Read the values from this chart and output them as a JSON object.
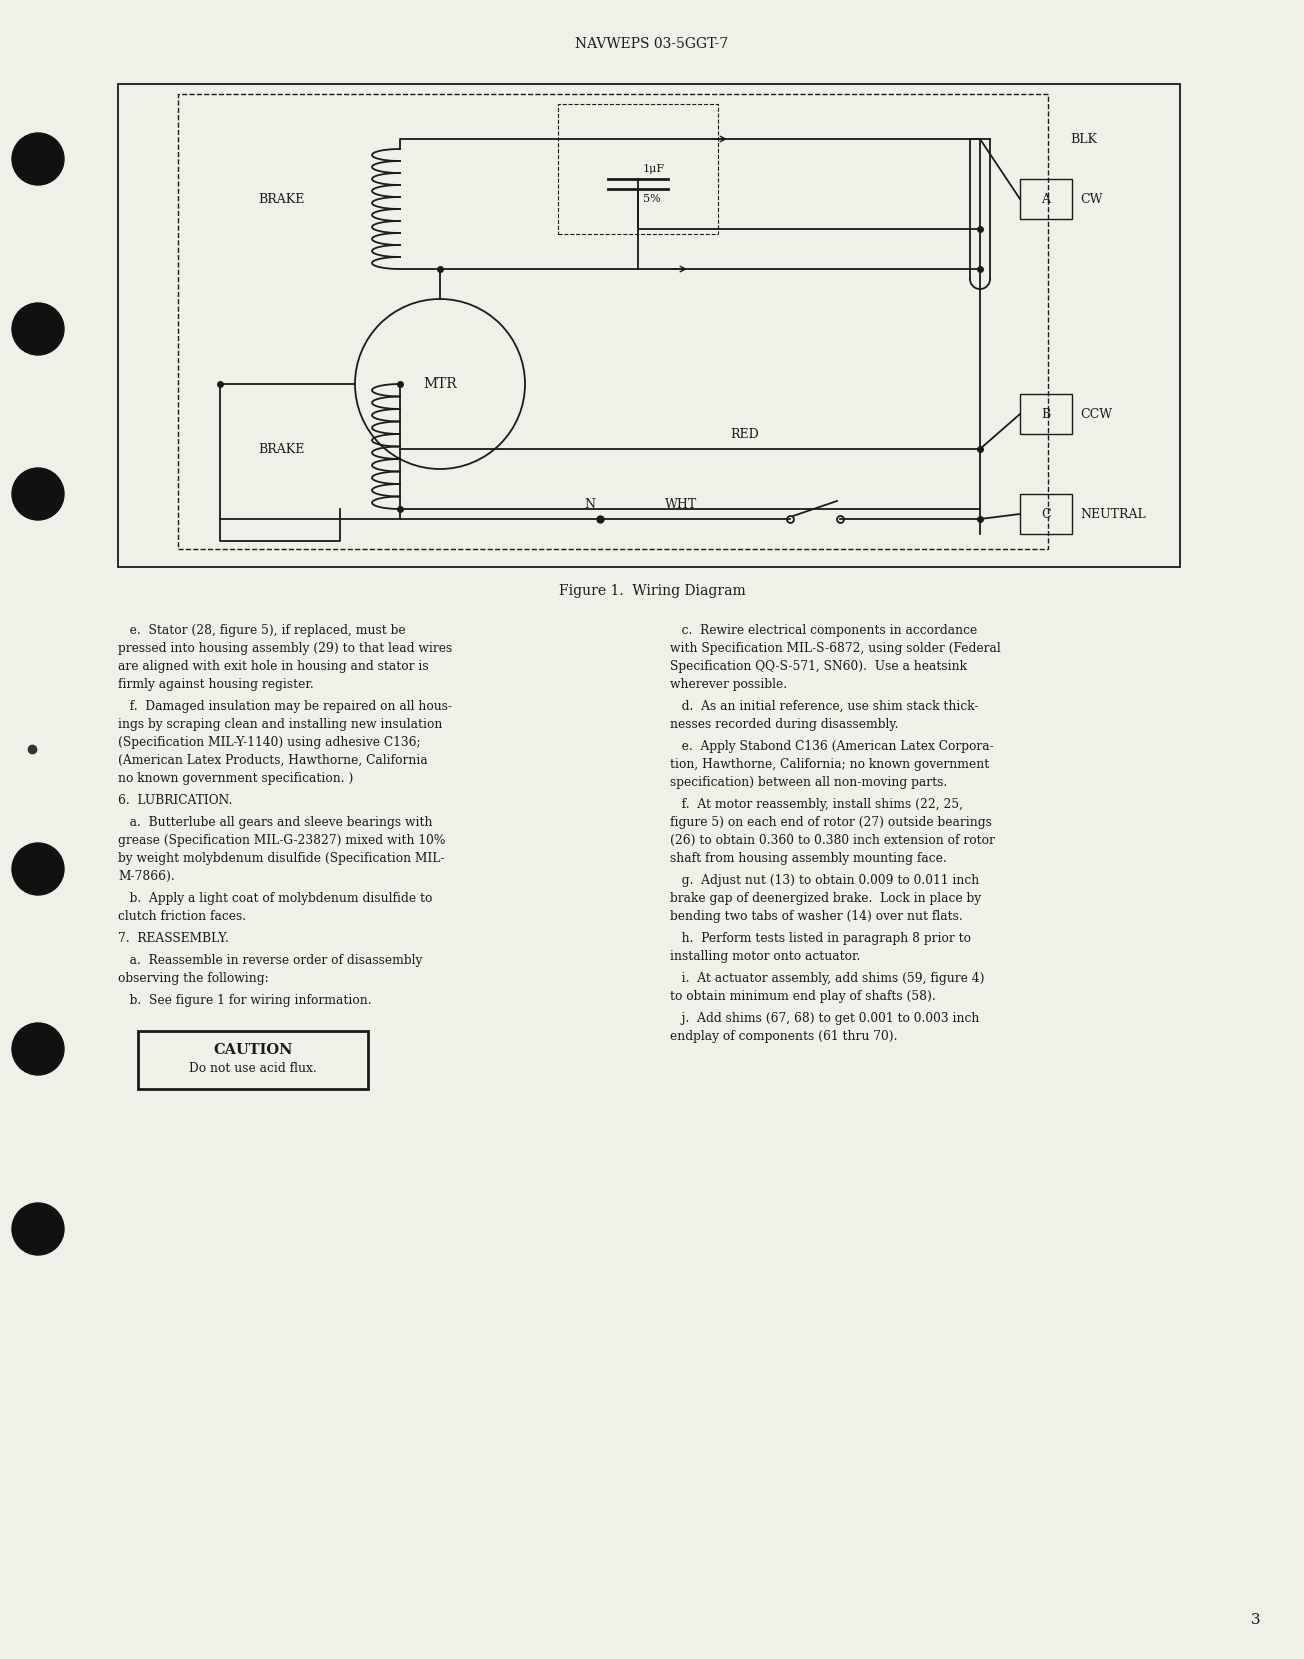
{
  "page_title": "NAVWEPS 03-5GGT-7",
  "page_number": "3",
  "figure_caption": "Figure 1.  Wiring Diagram",
  "bg_color": "#f0f0e8",
  "text_color": "#1a1a1a",
  "left_column_text": [
    {
      "style": "body",
      "text": "   e.  Stator (28, figure 5), if replaced, must be\npressed into housing assembly (29) to that lead wires\nare aligned with exit hole in housing and stator is\nfirmly against housing register."
    },
    {
      "style": "body",
      "text": "   f.  Damaged insulation may be repaired on all hous-\nings by scraping clean and installing new insulation\n(Specification MIL-Y-1140) using adhesive C136;\n(American Latex Products, Hawthorne, California\nno known government specification. )"
    },
    {
      "style": "section",
      "text": "6.  LUBRICATION."
    },
    {
      "style": "body",
      "text": "   a.  Butterlube all gears and sleeve bearings with\ngrease (Specification MIL-G-23827) mixed with 10%\nby weight molybdenum disulfide (Specification MIL-\nM-7866)."
    },
    {
      "style": "body",
      "text": "   b.  Apply a light coat of molybdenum disulfide to\nclutch friction faces."
    },
    {
      "style": "section",
      "text": "7.  REASSEMBLY."
    },
    {
      "style": "body",
      "text": "   a.  Reassemble in reverse order of disassembly\nobserving the following:"
    },
    {
      "style": "body",
      "text": "   b.  See figure 1 for wiring information."
    }
  ],
  "right_column_text": [
    {
      "style": "body",
      "text": "   c.  Rewire electrical components in accordance\nwith Specification MIL-S-6872, using solder (Federal\nSpecification QQ-S-571, SN60).  Use a heatsink\nwherever possible."
    },
    {
      "style": "body",
      "text": "   d.  As an initial reference, use shim stack thick-\nnesses recorded during disassembly."
    },
    {
      "style": "body",
      "text": "   e.  Apply Stabond C136 (American Latex Corpora-\ntion, Hawthorne, California; no known government\nspecification) between all non-moving parts."
    },
    {
      "style": "body",
      "text": "   f.  At motor reassembly, install shims (22, 25,\nfigure 5) on each end of rotor (27) outside bearings\n(26) to obtain 0.360 to 0.380 inch extension of rotor\nshaft from housing assembly mounting face."
    },
    {
      "style": "body",
      "text": "   g.  Adjust nut (13) to obtain 0.009 to 0.011 inch\nbrake gap of deenergized brake.  Lock in place by\nbending two tabs of washer (14) over nut flats."
    },
    {
      "style": "body",
      "text": "   h.  Perform tests listed in paragraph 8 prior to\ninstalling motor onto actuator."
    },
    {
      "style": "body",
      "text": "   i.  At actuator assembly, add shims (59, figure 4)\nto obtain minimum end play of shafts (58)."
    },
    {
      "style": "body",
      "text": "   j.  Add shims (67, 68) to get 0.001 to 0.003 inch\nendplay of components (61 thru 70)."
    }
  ],
  "caution_text": "Do not use acid flux."
}
